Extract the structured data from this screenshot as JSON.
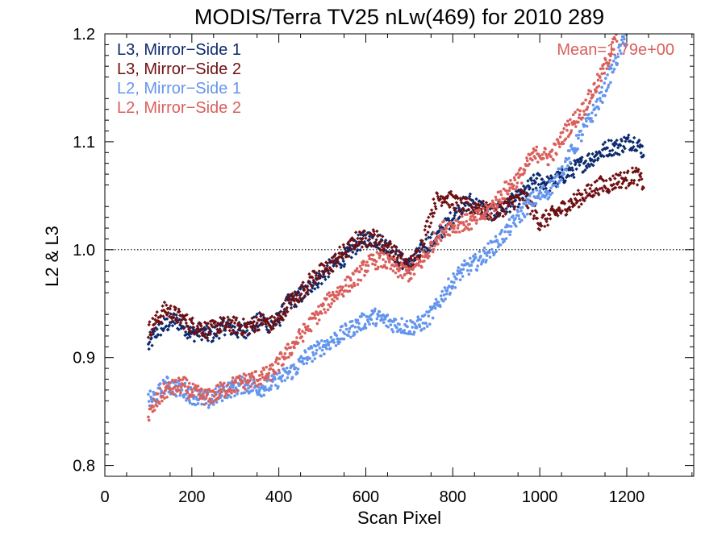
{
  "chart_data": {
    "type": "scatter",
    "title": "MODIS/Terra TV25 nLw(469) for 2010 289",
    "xlabel": "Scan Pixel",
    "ylabel": "L2 & L3",
    "xlim": [
      0,
      1354
    ],
    "ylim": [
      0.79,
      1.2
    ],
    "x_ticks": [
      0,
      200,
      400,
      600,
      800,
      1000,
      1200
    ],
    "x_tick_labels": [
      "0",
      "200",
      "400",
      "600",
      "800",
      "1000",
      "1200"
    ],
    "y_ticks": [
      0.8,
      0.9,
      1.0,
      1.1,
      1.2
    ],
    "y_tick_labels": [
      "0.8",
      "0.9",
      "1.0",
      "1.1",
      "1.2"
    ],
    "reference_line": {
      "y": 1.0,
      "style": "dotted",
      "color": "#000000"
    },
    "annotation": {
      "text": "Mean=1.79e+00",
      "color": "#d9605c",
      "position": "top-right"
    },
    "legend_position": "top-left",
    "grid": false,
    "series": [
      {
        "name": "L3, Mirror−Side 1",
        "color": "#0c2a6e",
        "marker": "diamond",
        "points": [
          [
            100,
            0.91
          ],
          [
            120,
            0.925
          ],
          [
            140,
            0.93
          ],
          [
            160,
            0.935
          ],
          [
            180,
            0.93
          ],
          [
            200,
            0.922
          ],
          [
            220,
            0.925
          ],
          [
            240,
            0.92
          ],
          [
            260,
            0.925
          ],
          [
            280,
            0.93
          ],
          [
            300,
            0.925
          ],
          [
            320,
            0.925
          ],
          [
            340,
            0.93
          ],
          [
            360,
            0.935
          ],
          [
            380,
            0.93
          ],
          [
            400,
            0.935
          ],
          [
            420,
            0.95
          ],
          [
            440,
            0.955
          ],
          [
            460,
            0.96
          ],
          [
            480,
            0.97
          ],
          [
            500,
            0.975
          ],
          [
            520,
            0.985
          ],
          [
            540,
            0.99
          ],
          [
            560,
            0.995
          ],
          [
            580,
            1.005
          ],
          [
            600,
            1.01
          ],
          [
            620,
            1.01
          ],
          [
            640,
            1.005
          ],
          [
            660,
            1.0
          ],
          [
            680,
            0.99
          ],
          [
            700,
            0.985
          ],
          [
            720,
            0.995
          ],
          [
            740,
            1.005
          ],
          [
            760,
            1.01
          ],
          [
            780,
            1.02
          ],
          [
            800,
            1.03
          ],
          [
            820,
            1.04
          ],
          [
            840,
            1.045
          ],
          [
            860,
            1.04
          ],
          [
            880,
            1.035
          ],
          [
            900,
            1.035
          ],
          [
            920,
            1.04
          ],
          [
            940,
            1.045
          ],
          [
            960,
            1.05
          ],
          [
            980,
            1.06
          ],
          [
            1000,
            1.065
          ],
          [
            1020,
            1.06
          ],
          [
            1040,
            1.065
          ],
          [
            1060,
            1.07
          ],
          [
            1080,
            1.075
          ],
          [
            1100,
            1.08
          ],
          [
            1120,
            1.085
          ],
          [
            1140,
            1.09
          ],
          [
            1160,
            1.095
          ],
          [
            1180,
            1.095
          ],
          [
            1200,
            1.1
          ],
          [
            1220,
            1.1
          ],
          [
            1240,
            1.09
          ]
        ]
      },
      {
        "name": "L3, Mirror−Side 2",
        "color": "#6e0f12",
        "marker": "diamond",
        "points": [
          [
            100,
            0.925
          ],
          [
            120,
            0.935
          ],
          [
            140,
            0.945
          ],
          [
            160,
            0.94
          ],
          [
            180,
            0.935
          ],
          [
            200,
            0.93
          ],
          [
            220,
            0.928
          ],
          [
            240,
            0.925
          ],
          [
            260,
            0.93
          ],
          [
            280,
            0.93
          ],
          [
            300,
            0.93
          ],
          [
            320,
            0.928
          ],
          [
            340,
            0.93
          ],
          [
            360,
            0.935
          ],
          [
            380,
            0.93
          ],
          [
            400,
            0.935
          ],
          [
            420,
            0.95
          ],
          [
            440,
            0.955
          ],
          [
            460,
            0.965
          ],
          [
            480,
            0.975
          ],
          [
            500,
            0.98
          ],
          [
            520,
            0.985
          ],
          [
            540,
            0.995
          ],
          [
            560,
            1.0
          ],
          [
            580,
            1.01
          ],
          [
            600,
            1.01
          ],
          [
            620,
            1.012
          ],
          [
            640,
            1.005
          ],
          [
            660,
            1.0
          ],
          [
            680,
            0.99
          ],
          [
            700,
            0.985
          ],
          [
            720,
            0.995
          ],
          [
            740,
            1.02
          ],
          [
            760,
            1.045
          ],
          [
            780,
            1.05
          ],
          [
            800,
            1.045
          ],
          [
            820,
            1.04
          ],
          [
            840,
            1.04
          ],
          [
            860,
            1.04
          ],
          [
            880,
            1.035
          ],
          [
            900,
            1.035
          ],
          [
            920,
            1.04
          ],
          [
            940,
            1.045
          ],
          [
            960,
            1.05
          ],
          [
            980,
            1.04
          ],
          [
            1000,
            1.025
          ],
          [
            1020,
            1.03
          ],
          [
            1040,
            1.035
          ],
          [
            1060,
            1.04
          ],
          [
            1080,
            1.045
          ],
          [
            1100,
            1.05
          ],
          [
            1120,
            1.055
          ],
          [
            1140,
            1.06
          ],
          [
            1160,
            1.06
          ],
          [
            1180,
            1.065
          ],
          [
            1200,
            1.065
          ],
          [
            1220,
            1.07
          ],
          [
            1240,
            1.06
          ]
        ]
      },
      {
        "name": "L2, Mirror−Side 1",
        "color": "#6495ed",
        "marker": "dot",
        "points": [
          [
            100,
            0.86
          ],
          [
            120,
            0.865
          ],
          [
            140,
            0.875
          ],
          [
            160,
            0.872
          ],
          [
            180,
            0.87
          ],
          [
            200,
            0.865
          ],
          [
            220,
            0.862
          ],
          [
            240,
            0.86
          ],
          [
            260,
            0.865
          ],
          [
            280,
            0.87
          ],
          [
            300,
            0.872
          ],
          [
            320,
            0.875
          ],
          [
            340,
            0.873
          ],
          [
            360,
            0.872
          ],
          [
            380,
            0.875
          ],
          [
            400,
            0.88
          ],
          [
            420,
            0.885
          ],
          [
            440,
            0.89
          ],
          [
            460,
            0.9
          ],
          [
            480,
            0.905
          ],
          [
            500,
            0.91
          ],
          [
            520,
            0.915
          ],
          [
            540,
            0.92
          ],
          [
            560,
            0.925
          ],
          [
            580,
            0.93
          ],
          [
            600,
            0.935
          ],
          [
            620,
            0.938
          ],
          [
            640,
            0.935
          ],
          [
            660,
            0.932
          ],
          [
            680,
            0.93
          ],
          [
            700,
            0.928
          ],
          [
            720,
            0.93
          ],
          [
            740,
            0.935
          ],
          [
            760,
            0.945
          ],
          [
            780,
            0.96
          ],
          [
            800,
            0.97
          ],
          [
            820,
            0.98
          ],
          [
            840,
            0.985
          ],
          [
            860,
            0.99
          ],
          [
            880,
            0.998
          ],
          [
            900,
            1.005
          ],
          [
            920,
            1.015
          ],
          [
            940,
            1.025
          ],
          [
            960,
            1.035
          ],
          [
            980,
            1.045
          ],
          [
            1000,
            1.05
          ],
          [
            1020,
            1.055
          ],
          [
            1040,
            1.065
          ],
          [
            1060,
            1.08
          ],
          [
            1080,
            1.095
          ],
          [
            1100,
            1.11
          ],
          [
            1120,
            1.125
          ],
          [
            1140,
            1.14
          ],
          [
            1160,
            1.16
          ],
          [
            1180,
            1.18
          ],
          [
            1200,
            1.2
          ]
        ]
      },
      {
        "name": "L2, Mirror−Side 2",
        "color": "#d9605c",
        "marker": "dot",
        "points": [
          [
            100,
            0.845
          ],
          [
            120,
            0.86
          ],
          [
            140,
            0.87
          ],
          [
            160,
            0.872
          ],
          [
            180,
            0.875
          ],
          [
            200,
            0.868
          ],
          [
            220,
            0.865
          ],
          [
            240,
            0.863
          ],
          [
            260,
            0.868
          ],
          [
            280,
            0.872
          ],
          [
            300,
            0.875
          ],
          [
            320,
            0.878
          ],
          [
            340,
            0.88
          ],
          [
            360,
            0.882
          ],
          [
            380,
            0.885
          ],
          [
            400,
            0.895
          ],
          [
            420,
            0.905
          ],
          [
            440,
            0.915
          ],
          [
            460,
            0.925
          ],
          [
            480,
            0.935
          ],
          [
            500,
            0.945
          ],
          [
            520,
            0.955
          ],
          [
            540,
            0.962
          ],
          [
            560,
            0.968
          ],
          [
            580,
            0.975
          ],
          [
            600,
            0.985
          ],
          [
            620,
            0.99
          ],
          [
            640,
            0.99
          ],
          [
            660,
            0.985
          ],
          [
            680,
            0.98
          ],
          [
            700,
            0.978
          ],
          [
            720,
            0.985
          ],
          [
            740,
            0.995
          ],
          [
            760,
            1.01
          ],
          [
            780,
            1.02
          ],
          [
            800,
            1.022
          ],
          [
            820,
            1.025
          ],
          [
            840,
            1.025
          ],
          [
            860,
            1.03
          ],
          [
            880,
            1.035
          ],
          [
            900,
            1.045
          ],
          [
            920,
            1.055
          ],
          [
            940,
            1.062
          ],
          [
            960,
            1.07
          ],
          [
            980,
            1.085
          ],
          [
            1000,
            1.09
          ],
          [
            1020,
            1.085
          ],
          [
            1040,
            1.095
          ],
          [
            1060,
            1.11
          ],
          [
            1080,
            1.12
          ],
          [
            1100,
            1.13
          ],
          [
            1120,
            1.145
          ],
          [
            1140,
            1.16
          ],
          [
            1160,
            1.18
          ],
          [
            1180,
            1.2
          ]
        ]
      }
    ]
  }
}
